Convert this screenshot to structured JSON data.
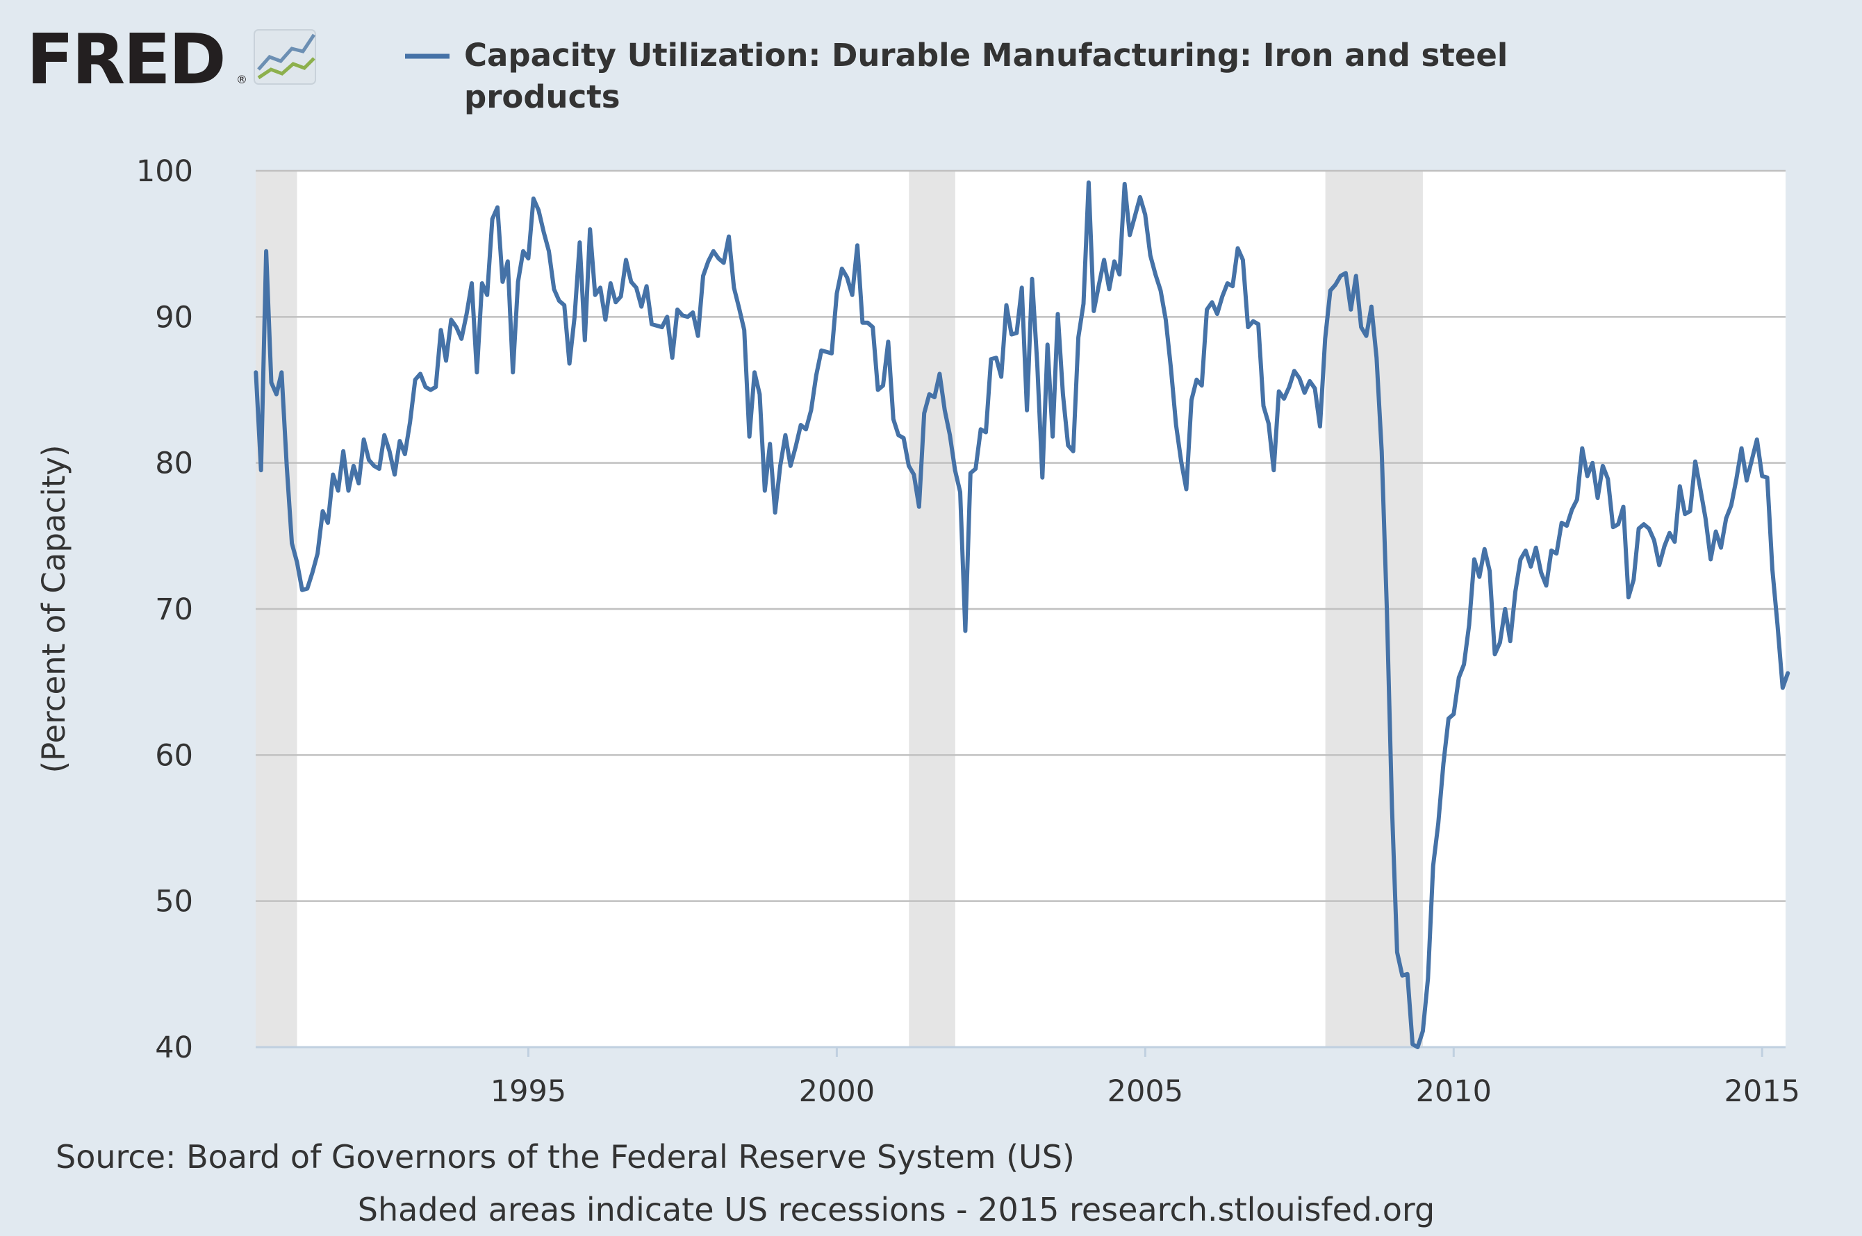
{
  "logo": {
    "text": "FRED",
    "trademark": "®"
  },
  "colors": {
    "background": "#e1e9f0",
    "plot_background": "#ffffff",
    "series": "#4572a7",
    "recession": "#e5e5e5",
    "grid": "#c0c0c0",
    "axis": "#c0d0e0",
    "text": "#333333"
  },
  "chart_data": {
    "type": "line",
    "title": "Capacity Utilization: Durable Manufacturing: Iron and steel products",
    "title_lines": [
      "Capacity Utilization: Durable Manufacturing: Iron and steel",
      "products"
    ],
    "ylabel": "(Percent of Capacity)",
    "xlabel": "",
    "ylim": [
      40,
      100
    ],
    "xlim": [
      1990.58,
      2015.38
    ],
    "yticks": [
      40,
      50,
      60,
      70,
      80,
      90,
      100
    ],
    "xticks": [
      1995,
      2000,
      2005,
      2010,
      2015
    ],
    "grid": true,
    "recessions": [
      [
        1990.58,
        1991.25
      ],
      [
        2001.17,
        2001.92
      ],
      [
        2007.92,
        2009.5
      ]
    ],
    "series": [
      {
        "name": "Capacity Utilization: Durable Manufacturing: Iron and steel products",
        "frequency": "monthly",
        "start": 1990.583,
        "values": [
          86.2,
          79.5,
          94.5,
          85.5,
          84.7,
          86.2,
          79.8,
          74.5,
          73.2,
          71.3,
          71.4,
          72.5,
          73.8,
          76.7,
          75.9,
          79.2,
          78.1,
          80.8,
          78.1,
          79.8,
          78.6,
          81.6,
          80.2,
          79.8,
          79.6,
          81.9,
          80.8,
          79.2,
          81.5,
          80.6,
          82.8,
          85.7,
          86.1,
          85.2,
          85.0,
          85.2,
          89.1,
          87.0,
          89.8,
          89.3,
          88.5,
          90.2,
          92.3,
          86.2,
          92.3,
          91.5,
          96.7,
          97.5,
          92.4,
          93.8,
          86.2,
          92.4,
          94.5,
          94.0,
          98.1,
          97.3,
          95.8,
          94.5,
          91.9,
          91.1,
          90.8,
          86.8,
          90.0,
          95.1,
          88.4,
          96.0,
          91.5,
          92.0,
          89.8,
          92.3,
          91.0,
          91.4,
          93.9,
          92.4,
          92.0,
          90.7,
          92.1,
          89.5,
          89.4,
          89.3,
          90.0,
          87.2,
          90.5,
          90.1,
          90.0,
          90.3,
          88.7,
          92.8,
          93.8,
          94.5,
          94.0,
          93.7,
          95.5,
          92.0,
          90.6,
          89.1,
          81.8,
          86.2,
          84.7,
          78.1,
          81.3,
          76.6,
          79.8,
          81.9,
          79.8,
          81.1,
          82.6,
          82.3,
          83.6,
          86.0,
          87.7,
          87.6,
          87.5,
          91.6,
          93.3,
          92.7,
          91.5,
          94.9,
          89.6,
          89.6,
          89.3,
          85.0,
          85.3,
          88.3,
          83.0,
          81.9,
          81.7,
          79.8,
          79.2,
          77.0,
          83.4,
          84.7,
          84.5,
          86.1,
          83.6,
          81.9,
          79.5,
          78.0,
          68.5,
          79.3,
          79.6,
          82.3,
          82.1,
          87.1,
          87.2,
          85.9,
          90.8,
          88.8,
          88.9,
          92.0,
          83.6,
          92.6,
          86.8,
          79.0,
          88.1,
          81.8,
          90.2,
          84.7,
          81.2,
          80.8,
          88.6,
          90.9,
          99.2,
          90.4,
          92.2,
          93.9,
          91.9,
          93.8,
          92.9,
          99.1,
          95.6,
          96.9,
          98.2,
          97.0,
          94.2,
          92.9,
          91.8,
          89.8,
          86.5,
          82.6,
          80.1,
          78.2,
          84.3,
          85.7,
          85.3,
          90.5,
          91.0,
          90.2,
          91.4,
          92.3,
          92.1,
          94.7,
          93.9,
          89.3,
          89.7,
          89.5,
          83.9,
          82.7,
          79.5,
          84.9,
          84.4,
          85.2,
          86.3,
          85.8,
          84.8,
          85.6,
          85.1,
          82.5,
          88.5,
          91.8,
          92.2,
          92.8,
          93.0,
          90.5,
          92.8,
          89.3,
          88.7,
          90.7,
          87.2,
          80.8,
          70.0,
          56.4,
          46.5,
          44.9,
          45.0,
          40.2,
          40.0,
          41.1,
          44.7,
          52.4,
          55.3,
          59.4,
          62.5,
          62.8,
          65.3,
          66.2,
          68.9,
          73.4,
          72.2,
          74.1,
          72.6,
          66.9,
          67.7,
          70.0,
          67.8,
          71.2,
          73.4,
          74.0,
          72.9,
          74.2,
          72.5,
          71.6,
          74.0,
          73.8,
          75.9,
          75.7,
          76.8,
          77.5,
          81.0,
          79.1,
          80.0,
          77.6,
          79.8,
          78.9,
          75.6,
          75.8,
          77.0,
          70.8,
          72.0,
          75.5,
          75.8,
          75.5,
          74.7,
          73.0,
          74.3,
          75.2,
          74.6,
          78.4,
          76.5,
          76.7,
          80.1,
          78.2,
          76.2,
          73.4,
          75.3,
          74.2,
          76.2,
          77.1,
          78.9,
          81.0,
          78.8,
          80.2,
          81.6,
          79.1,
          79.0,
          72.7,
          68.9,
          64.6,
          65.6
        ]
      }
    ]
  },
  "footer": {
    "source": "Source: Board of Governors of the Federal Reserve System (US)",
    "note": "Shaded areas indicate US recessions - 2015 research.stlouisfed.org"
  }
}
